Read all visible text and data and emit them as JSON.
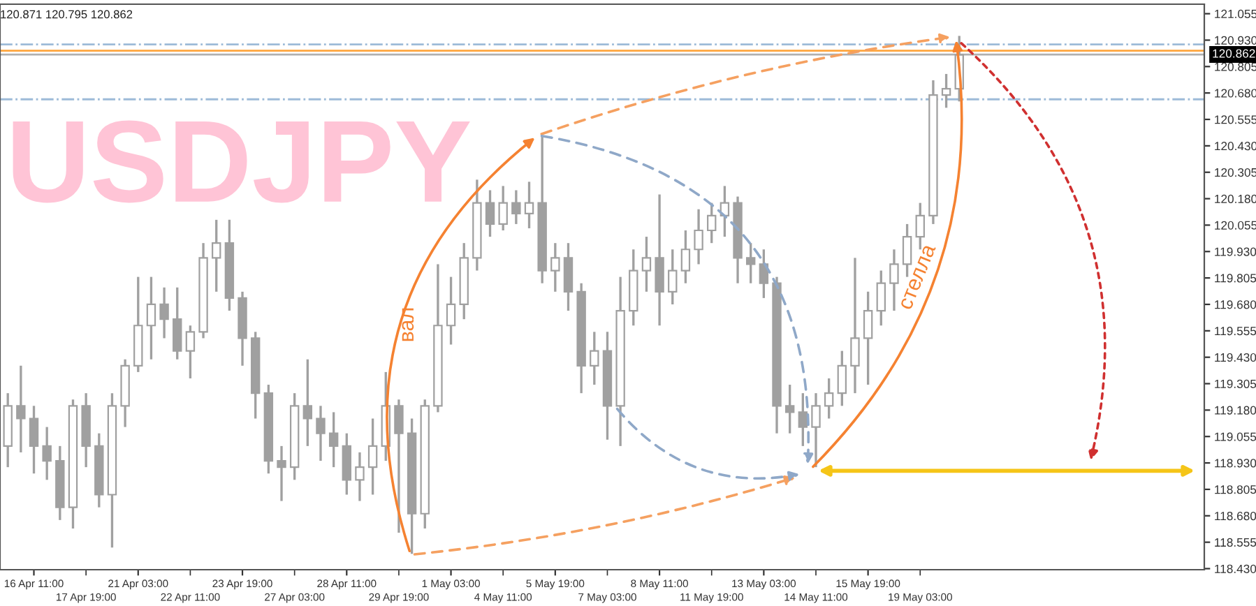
{
  "chart_data": {
    "type": "candlestick",
    "title": "USDJPY",
    "annotations": [
      "120.871 120.795 120.862",
      "вал",
      "стелла"
    ],
    "categories": [
      null,
      null,
      "16 Apr 11:00",
      null,
      null,
      null,
      "17 Apr 19:00",
      null,
      null,
      null,
      "21 Apr 03:00",
      null,
      null,
      null,
      "22 Apr 11:00",
      null,
      null,
      null,
      "23 Apr 19:00",
      null,
      null,
      null,
      "27 Apr 03:00",
      null,
      null,
      null,
      "28 Apr 11:00",
      null,
      null,
      null,
      "29 Apr 19:00",
      null,
      null,
      null,
      "1 May 03:00",
      null,
      null,
      null,
      "4 May 11:00",
      null,
      null,
      null,
      "5 May 19:00",
      null,
      null,
      null,
      "7 May 03:00",
      null,
      null,
      null,
      "8 May 11:00",
      null,
      null,
      null,
      "11 May 19:00",
      null,
      null,
      null,
      "13 May 03:00",
      null,
      null,
      null,
      "14 May 11:00",
      null,
      null,
      null,
      "15 May 19:00",
      null,
      null,
      null,
      "19 May 03:00",
      null,
      null,
      null,
      null,
      null,
      null,
      null,
      null,
      null,
      null,
      null,
      null,
      null,
      null,
      null,
      null,
      null,
      null,
      null,
      null,
      null
    ],
    "color": "#a0a0a0",
    "ohlc": [
      [
        119.01,
        119.26,
        118.91,
        119.2
      ],
      [
        119.2,
        119.39,
        118.98,
        119.14
      ],
      [
        119.14,
        119.2,
        118.88,
        119.01
      ],
      [
        119.01,
        119.1,
        118.85,
        118.94
      ],
      [
        118.94,
        119.01,
        118.66,
        118.72
      ],
      [
        118.72,
        119.23,
        118.62,
        119.2
      ],
      [
        119.2,
        119.26,
        118.91,
        119.01
      ],
      [
        119.01,
        119.07,
        118.72,
        118.78
      ],
      [
        118.78,
        119.26,
        118.53,
        119.2
      ],
      [
        119.2,
        119.42,
        119.1,
        119.39
      ],
      [
        119.39,
        119.81,
        119.36,
        119.58
      ],
      [
        119.58,
        119.81,
        119.42,
        119.68
      ],
      [
        119.68,
        119.76,
        119.52,
        119.61
      ],
      [
        119.61,
        119.76,
        119.42,
        119.46
      ],
      [
        119.46,
        119.58,
        119.33,
        119.55
      ],
      [
        119.55,
        119.97,
        119.52,
        119.9
      ],
      [
        119.9,
        120.08,
        119.74,
        119.97
      ],
      [
        119.97,
        120.08,
        119.65,
        119.71
      ],
      [
        119.71,
        119.74,
        119.39,
        119.52
      ],
      [
        119.52,
        119.55,
        119.14,
        119.26
      ],
      [
        119.26,
        119.3,
        118.88,
        118.94
      ],
      [
        118.94,
        119.01,
        118.75,
        118.91
      ],
      [
        118.91,
        119.26,
        118.85,
        119.2
      ],
      [
        119.2,
        119.42,
        119.01,
        119.14
      ],
      [
        119.14,
        119.2,
        118.94,
        119.07
      ],
      [
        119.07,
        119.17,
        118.91,
        119.01
      ],
      [
        119.01,
        119.07,
        118.78,
        118.85
      ],
      [
        118.85,
        118.98,
        118.75,
        118.91
      ],
      [
        118.91,
        119.14,
        118.78,
        119.01
      ],
      [
        119.01,
        119.36,
        118.94,
        119.2
      ],
      [
        119.2,
        119.23,
        118.6,
        119.07
      ],
      [
        119.07,
        119.14,
        118.5,
        118.69
      ],
      [
        118.69,
        119.23,
        118.62,
        119.2
      ],
      [
        119.2,
        119.87,
        119.17,
        119.58
      ],
      [
        119.58,
        119.81,
        119.49,
        119.68
      ],
      [
        119.68,
        119.97,
        119.61,
        119.9
      ],
      [
        119.9,
        120.27,
        119.84,
        120.16
      ],
      [
        120.16,
        120.22,
        120.0,
        120.06
      ],
      [
        120.06,
        120.24,
        120.03,
        120.16
      ],
      [
        120.16,
        120.22,
        120.06,
        120.11
      ],
      [
        120.11,
        120.26,
        120.04,
        120.16
      ],
      [
        120.16,
        120.48,
        119.78,
        119.84
      ],
      [
        119.84,
        119.97,
        119.74,
        119.9
      ],
      [
        119.9,
        119.97,
        119.65,
        119.74
      ],
      [
        119.74,
        119.78,
        119.26,
        119.39
      ],
      [
        119.39,
        119.55,
        119.3,
        119.46
      ],
      [
        119.46,
        119.55,
        119.04,
        119.2
      ],
      [
        119.2,
        119.81,
        119.01,
        119.65
      ],
      [
        119.65,
        119.94,
        119.58,
        119.84
      ],
      [
        119.84,
        120.0,
        119.74,
        119.9
      ],
      [
        119.9,
        120.2,
        119.58,
        119.74
      ],
      [
        119.74,
        119.94,
        119.68,
        119.84
      ],
      [
        119.84,
        120.03,
        119.78,
        119.94
      ],
      [
        119.94,
        120.13,
        119.87,
        120.03
      ],
      [
        120.03,
        120.16,
        119.97,
        120.1
      ],
      [
        120.1,
        120.24,
        120.0,
        120.16
      ],
      [
        120.16,
        120.19,
        119.78,
        119.9
      ],
      [
        119.9,
        119.97,
        119.78,
        119.87
      ],
      [
        119.87,
        119.94,
        119.71,
        119.78
      ],
      [
        119.78,
        119.81,
        119.07,
        119.2
      ],
      [
        119.2,
        119.3,
        119.07,
        119.17
      ],
      [
        119.17,
        119.26,
        119.01,
        119.1
      ],
      [
        119.1,
        119.26,
        118.91,
        119.2
      ],
      [
        119.2,
        119.33,
        119.14,
        119.26
      ],
      [
        119.26,
        119.46,
        119.2,
        119.39
      ],
      [
        119.39,
        119.9,
        119.26,
        119.52
      ],
      [
        119.52,
        119.74,
        119.3,
        119.65
      ],
      [
        119.65,
        119.84,
        119.58,
        119.78
      ],
      [
        119.78,
        119.94,
        119.65,
        119.87
      ],
      [
        119.87,
        120.06,
        119.81,
        120.0
      ],
      [
        120.0,
        120.16,
        119.94,
        120.1
      ],
      [
        120.1,
        120.74,
        120.06,
        120.67
      ],
      [
        120.67,
        120.77,
        120.61,
        120.7
      ],
      [
        120.7,
        120.95,
        120.64,
        120.86
      ],
      null,
      null,
      null,
      null,
      null,
      null,
      null,
      null,
      null,
      null,
      null,
      null,
      null,
      null,
      null,
      null,
      null,
      null
    ],
    "ylim": [
      118.425,
      121.1
    ],
    "yticks": [
      {
        "value": 121.055,
        "label": "121.055"
      },
      {
        "value": 120.93,
        "label": "120.930"
      },
      {
        "value": 120.805,
        "label": "120.805"
      },
      {
        "value": 120.68,
        "label": "120.680"
      },
      {
        "value": 120.555,
        "label": "120.555"
      },
      {
        "value": 120.43,
        "label": "120.430"
      },
      {
        "value": 120.305,
        "label": "120.305"
      },
      {
        "value": 120.18,
        "label": "120.180"
      },
      {
        "value": 120.055,
        "label": "120.055"
      },
      {
        "value": 119.93,
        "label": "119.930"
      },
      {
        "value": 119.805,
        "label": "119.805"
      },
      {
        "value": 119.68,
        "label": "119.680"
      },
      {
        "value": 119.555,
        "label": "119.555"
      },
      {
        "value": 119.43,
        "label": "119.430"
      },
      {
        "value": 119.305,
        "label": "119.305"
      },
      {
        "value": 119.18,
        "label": "119.180"
      },
      {
        "value": 119.055,
        "label": "119.055"
      },
      {
        "value": 118.93,
        "label": "118.930"
      },
      {
        "value": 118.805,
        "label": "118.805"
      },
      {
        "value": 118.68,
        "label": "118.680"
      },
      {
        "value": 118.555,
        "label": "118.555"
      },
      {
        "value": 118.43,
        "label": "118.430"
      }
    ],
    "ref_lines": [
      {
        "axis": "y",
        "value": 120.91,
        "color": "#9dbbd8",
        "line_style": "dashdot"
      },
      {
        "axis": "y",
        "value": 120.88,
        "color": "#ffa53c",
        "line_style": "solid"
      },
      {
        "axis": "y",
        "value": 120.862,
        "label": "120.862",
        "color": "#b0b0b0",
        "line_style": "solid"
      },
      {
        "axis": "y",
        "value": 120.65,
        "color": "#9dbbd8",
        "line_style": "dashdot"
      }
    ],
    "grid": false
  }
}
